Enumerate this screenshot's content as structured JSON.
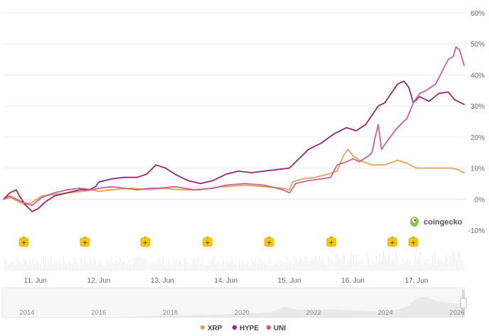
{
  "chart_data": {
    "type": "line",
    "title": "",
    "xlabel": "",
    "ylabel": "",
    "y_unit": "%",
    "ylim": [
      -10,
      60
    ],
    "y_ticks": [
      "60%",
      "50%",
      "40%",
      "30%",
      "20%",
      "10%",
      "0%",
      "-10%"
    ],
    "y_tick_values": [
      60,
      50,
      40,
      30,
      20,
      10,
      0,
      -10
    ],
    "x_range_days": [
      10.5,
      17.75
    ],
    "x_ticks": [
      {
        "label": "11. Jun",
        "day": 11
      },
      {
        "label": "12. Jun",
        "day": 12
      },
      {
        "label": "13. Jun",
        "day": 13
      },
      {
        "label": "14. Jun",
        "day": 14
      },
      {
        "label": "15. Jun",
        "day": 15
      },
      {
        "label": "16. Jun",
        "day": 16
      },
      {
        "label": "17. Jun",
        "day": 17
      }
    ],
    "grid": true,
    "legend_position": "bottom-center",
    "series": [
      {
        "name": "XRP",
        "color": "#e0a25a",
        "points": [
          [
            10.5,
            0
          ],
          [
            10.62,
            0.5
          ],
          [
            10.75,
            -1
          ],
          [
            10.85,
            -2
          ],
          [
            10.95,
            -1
          ],
          [
            11.1,
            1
          ],
          [
            11.3,
            1.5
          ],
          [
            11.5,
            2
          ],
          [
            11.75,
            2.5
          ],
          [
            11.9,
            3
          ],
          [
            12.0,
            2.5
          ],
          [
            12.2,
            3
          ],
          [
            12.5,
            3.5
          ],
          [
            12.8,
            3
          ],
          [
            13.0,
            3.5
          ],
          [
            13.3,
            3
          ],
          [
            13.6,
            3
          ],
          [
            13.9,
            4
          ],
          [
            14.0,
            4
          ],
          [
            14.3,
            4.5
          ],
          [
            14.6,
            4
          ],
          [
            14.9,
            3.5
          ],
          [
            15.0,
            3
          ],
          [
            15.05,
            5.5
          ],
          [
            15.2,
            6.5
          ],
          [
            15.4,
            7
          ],
          [
            15.6,
            8
          ],
          [
            15.75,
            9
          ],
          [
            15.85,
            14
          ],
          [
            15.92,
            16
          ],
          [
            16.0,
            14
          ],
          [
            16.1,
            12.5
          ],
          [
            16.3,
            11
          ],
          [
            16.5,
            11
          ],
          [
            16.7,
            12.5
          ],
          [
            16.85,
            11.5
          ],
          [
            17.0,
            10
          ],
          [
            17.3,
            10
          ],
          [
            17.55,
            10
          ],
          [
            17.65,
            9.5
          ],
          [
            17.75,
            8.5
          ]
        ]
      },
      {
        "name": "HYPE",
        "color": "#8c2c6e",
        "points": [
          [
            10.5,
            0
          ],
          [
            10.6,
            2
          ],
          [
            10.7,
            3
          ],
          [
            10.75,
            1
          ],
          [
            10.85,
            -2
          ],
          [
            10.95,
            -4
          ],
          [
            11.05,
            -3
          ],
          [
            11.15,
            -1
          ],
          [
            11.3,
            1
          ],
          [
            11.5,
            2
          ],
          [
            11.7,
            3
          ],
          [
            11.85,
            3
          ],
          [
            11.95,
            4
          ],
          [
            12.0,
            5.5
          ],
          [
            12.2,
            6.5
          ],
          [
            12.4,
            7
          ],
          [
            12.6,
            7
          ],
          [
            12.75,
            8
          ],
          [
            12.9,
            11
          ],
          [
            13.05,
            10
          ],
          [
            13.2,
            8
          ],
          [
            13.4,
            6
          ],
          [
            13.6,
            5
          ],
          [
            13.8,
            6
          ],
          [
            14.0,
            8
          ],
          [
            14.2,
            9
          ],
          [
            14.4,
            8.5
          ],
          [
            14.6,
            9
          ],
          [
            14.8,
            9.5
          ],
          [
            15.0,
            10
          ],
          [
            15.15,
            13
          ],
          [
            15.3,
            16
          ],
          [
            15.5,
            18
          ],
          [
            15.7,
            21
          ],
          [
            15.9,
            23
          ],
          [
            16.05,
            22
          ],
          [
            16.2,
            24
          ],
          [
            16.4,
            30
          ],
          [
            16.5,
            31
          ],
          [
            16.7,
            37
          ],
          [
            16.8,
            38
          ],
          [
            16.88,
            36
          ],
          [
            16.95,
            31
          ],
          [
            17.05,
            33
          ],
          [
            17.2,
            31.5
          ],
          [
            17.35,
            34
          ],
          [
            17.5,
            34.5
          ],
          [
            17.6,
            32
          ],
          [
            17.75,
            30.5
          ]
        ]
      },
      {
        "name": "UNI",
        "color": "#cc5f91",
        "points": [
          [
            10.5,
            0
          ],
          [
            10.6,
            1
          ],
          [
            10.7,
            0
          ],
          [
            10.8,
            -1
          ],
          [
            10.95,
            -2
          ],
          [
            11.1,
            0.5
          ],
          [
            11.3,
            2
          ],
          [
            11.5,
            3
          ],
          [
            11.7,
            3.5
          ],
          [
            11.9,
            3
          ],
          [
            12.0,
            3.5
          ],
          [
            12.2,
            4
          ],
          [
            12.4,
            3.5
          ],
          [
            12.6,
            3
          ],
          [
            12.8,
            3.5
          ],
          [
            12.95,
            3.5
          ],
          [
            13.2,
            4
          ],
          [
            13.5,
            3
          ],
          [
            13.8,
            3.5
          ],
          [
            14.0,
            4.5
          ],
          [
            14.3,
            5
          ],
          [
            14.6,
            4.5
          ],
          [
            14.9,
            3
          ],
          [
            15.0,
            2
          ],
          [
            15.1,
            5
          ],
          [
            15.3,
            6
          ],
          [
            15.5,
            6.5
          ],
          [
            15.65,
            7
          ],
          [
            15.75,
            11
          ],
          [
            15.9,
            12
          ],
          [
            16.0,
            13
          ],
          [
            16.1,
            12
          ],
          [
            16.25,
            14
          ],
          [
            16.3,
            15
          ],
          [
            16.35,
            20
          ],
          [
            16.4,
            24
          ],
          [
            16.45,
            16
          ],
          [
            16.55,
            19
          ],
          [
            16.7,
            23
          ],
          [
            16.85,
            26
          ],
          [
            16.95,
            31
          ],
          [
            17.05,
            34
          ],
          [
            17.15,
            35
          ],
          [
            17.3,
            37
          ],
          [
            17.4,
            41
          ],
          [
            17.5,
            45
          ],
          [
            17.58,
            46
          ],
          [
            17.62,
            49
          ],
          [
            17.68,
            48
          ],
          [
            17.75,
            43
          ]
        ]
      }
    ],
    "event_flags": [
      {
        "label": "+",
        "day": 10.82
      },
      {
        "label": "+",
        "day": 11.78
      },
      {
        "label": "+",
        "day": 12.73
      },
      {
        "label": "+",
        "day": 13.71
      },
      {
        "label": "+",
        "day": 14.68
      },
      {
        "label": "+",
        "day": 15.66
      },
      {
        "label": "+",
        "day": 16.62
      },
      {
        "label": "+",
        "day": 16.95
      }
    ],
    "navigator": {
      "years": [
        "2014",
        "2016",
        "2018",
        "2020",
        "2022",
        "2024",
        "2026"
      ]
    }
  },
  "watermark": {
    "brand": "coingecko"
  },
  "legend": [
    {
      "label": "XRP",
      "color": "#e0a25a"
    },
    {
      "label": "HYPE",
      "color": "#8c2c6e"
    },
    {
      "label": "UNI",
      "color": "#cc5f91"
    }
  ]
}
